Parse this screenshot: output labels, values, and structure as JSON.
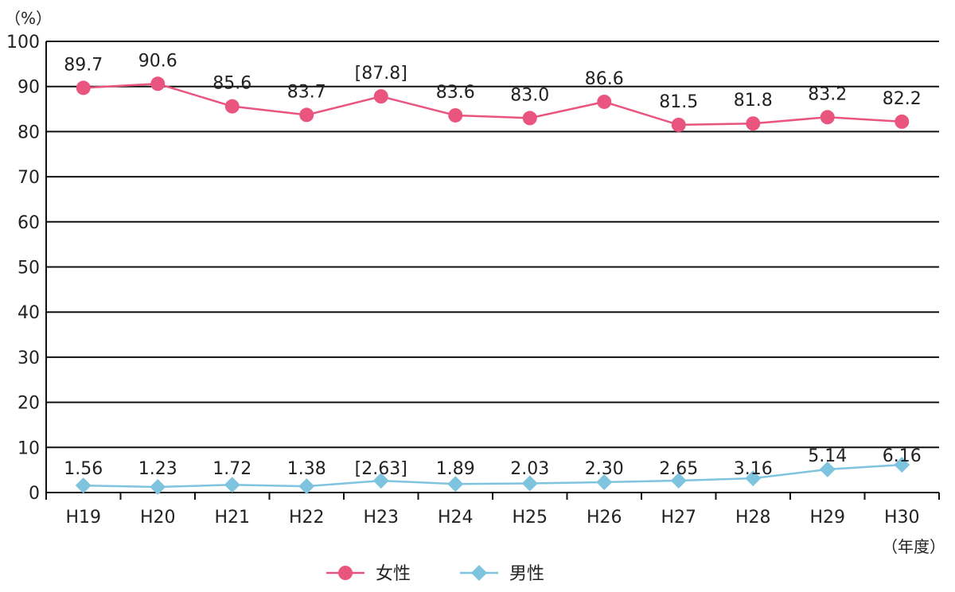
{
  "chart_data": {
    "type": "line",
    "title": "",
    "xlabel": "（年度）",
    "ylabel": "（%）",
    "ylim": [
      0,
      100
    ],
    "yticks": [
      0,
      10,
      20,
      30,
      40,
      50,
      60,
      70,
      80,
      90,
      100
    ],
    "grid": true,
    "legend_position": "bottom",
    "categories": [
      "H19",
      "H20",
      "H21",
      "H22",
      "H23",
      "H24",
      "H25",
      "H26",
      "H27",
      "H28",
      "H29",
      "H30"
    ],
    "series": [
      {
        "name": "女性",
        "marker": "circle",
        "color": "#e9557f",
        "values": [
          89.7,
          90.6,
          85.6,
          83.7,
          87.8,
          83.6,
          83.0,
          86.6,
          81.5,
          81.8,
          83.2,
          82.2
        ],
        "labels": [
          "89.7",
          "90.6",
          "85.6",
          "83.7",
          "[87.8]",
          "83.6",
          "83.0",
          "86.6",
          "81.5",
          "81.8",
          "83.2",
          "82.2"
        ]
      },
      {
        "name": "男性",
        "marker": "diamond",
        "color": "#7fc4df",
        "values": [
          1.56,
          1.23,
          1.72,
          1.38,
          2.63,
          1.89,
          2.03,
          2.3,
          2.65,
          3.16,
          5.14,
          6.16
        ],
        "labels": [
          "1.56",
          "1.23",
          "1.72",
          "1.38",
          "[2.63]",
          "1.89",
          "2.03",
          "2.30",
          "2.65",
          "3.16",
          "5.14",
          "6.16"
        ]
      }
    ]
  }
}
